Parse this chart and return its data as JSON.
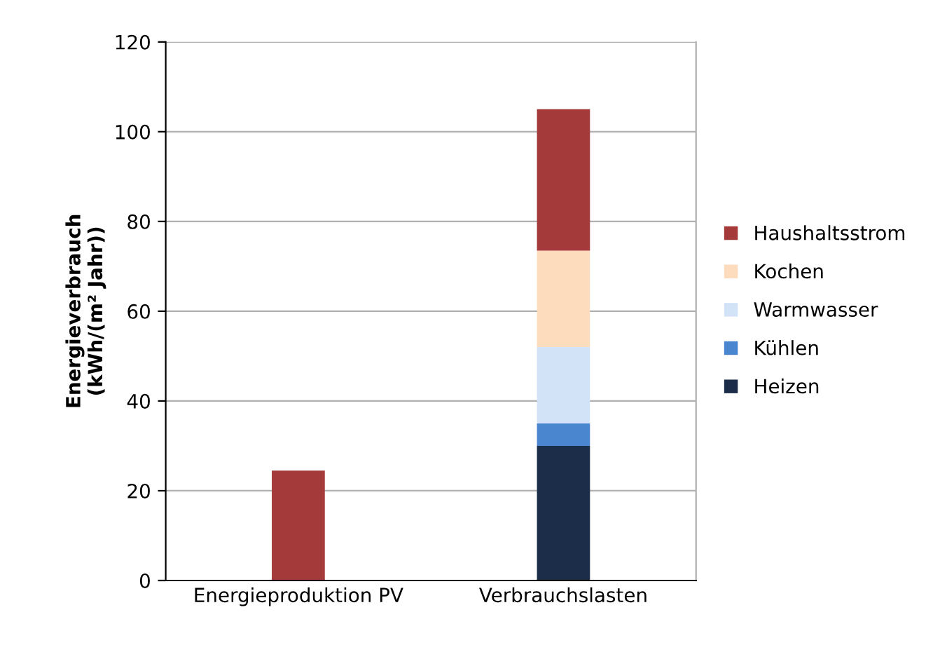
{
  "chart_data": {
    "type": "bar",
    "stacked": true,
    "ylabel": "Energieverbrauch\n(kWh/(m² Jahr))",
    "categories": [
      "Energieproduktion PV",
      "Verbrauchslasten"
    ],
    "series": [
      {
        "name": "Heizen",
        "color": "#1b2d48",
        "values": [
          null,
          30
        ]
      },
      {
        "name": "Kühlen",
        "color": "#4a86d0",
        "values": [
          null,
          5
        ]
      },
      {
        "name": "Warmwasser",
        "color": "#d3e3f7",
        "values": [
          null,
          17
        ]
      },
      {
        "name": "Kochen",
        "color": "#fcdcbc",
        "values": [
          null,
          21.5
        ]
      },
      {
        "name": "Haushaltsstrom",
        "color": "#a43a3a",
        "values": [
          24.5,
          31.5
        ]
      }
    ],
    "ylim": [
      0,
      120
    ],
    "yticks": [
      0,
      20,
      40,
      60,
      80,
      100,
      120
    ],
    "grid": "y",
    "legend": "right"
  }
}
